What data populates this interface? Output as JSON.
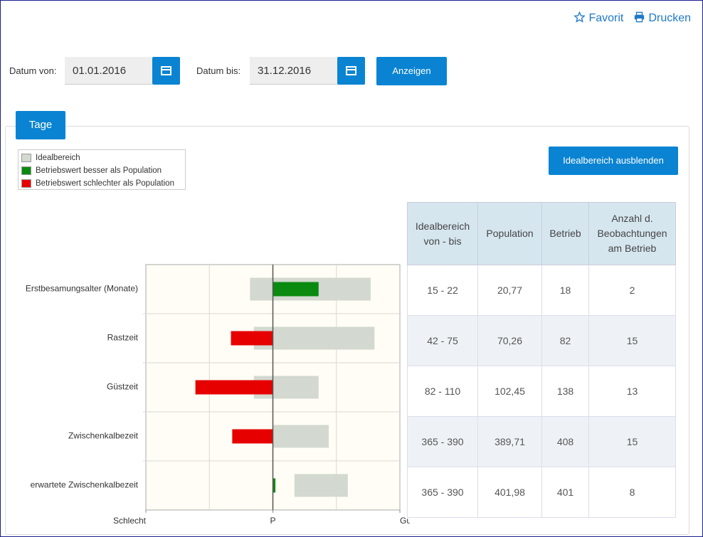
{
  "header": {
    "favorite": "Favorit",
    "print": "Drucken"
  },
  "filter": {
    "from_label": "Datum von:",
    "from_value": "01.01.2016",
    "to_label": "Datum bis:",
    "to_value": "31.12.2016",
    "submit": "Anzeigen"
  },
  "tab": "Tage",
  "toggle_button": "Idealbereich ausblenden",
  "chart_data": {
    "type": "range-bar",
    "legend": [
      {
        "name": "Idealbereich",
        "color": "#d3d9d0"
      },
      {
        "name": "Betriebswert besser als Population",
        "color": "#0b8a10"
      },
      {
        "name": "Betriebswert schlechter als Population",
        "color": "#e60000"
      }
    ],
    "categories": [
      "Erstbesamungsalter (Monate)",
      "Rastzeit",
      "Güstzeit",
      "Zwischenkalbezeit",
      "erwartete Zwischenkalbezeit"
    ],
    "ideal_low": [
      -0.18,
      -0.15,
      -0.15,
      0,
      0.17
    ],
    "ideal_high": [
      0.77,
      0.8,
      0.36,
      0.44,
      0.59
    ],
    "betrieb": [
      0.36,
      -0.33,
      -0.61,
      -0.32,
      0.02
    ],
    "xlim": [
      -1,
      1
    ],
    "xticks": [
      {
        "value": -1,
        "label": "Schlecht"
      },
      {
        "value": 0,
        "label": "P"
      },
      {
        "value": 1,
        "label": "Gut"
      }
    ],
    "grid_x": [
      -0.5,
      0.5
    ]
  },
  "table": {
    "columns": [
      "Idealbereich von - bis",
      "Population",
      "Betrieb",
      "Anzahl d. Beobachtungen am Betrieb"
    ],
    "rows": [
      [
        "15 - 22",
        "20,77",
        "18",
        "2"
      ],
      [
        "42 - 75",
        "70,26",
        "82",
        "15"
      ],
      [
        "82 - 110",
        "102,45",
        "138",
        "13"
      ],
      [
        "365 - 390",
        "389,71",
        "408",
        "15"
      ],
      [
        "365 - 390",
        "401,98",
        "401",
        "8"
      ]
    ]
  }
}
